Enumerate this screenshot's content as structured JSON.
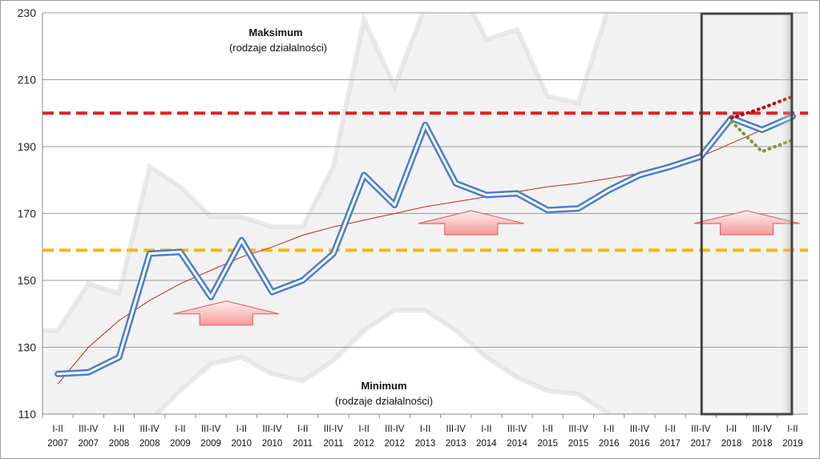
{
  "chart_data": {
    "type": "line",
    "title": "",
    "xlabel": "",
    "ylabel": "",
    "ylim": [
      110,
      230
    ],
    "yticks": [
      110,
      130,
      150,
      170,
      190,
      210,
      230
    ],
    "grid": true,
    "categories": [
      [
        "I-II",
        "2007"
      ],
      [
        "III-IV",
        "2007"
      ],
      [
        "I-II",
        "2008"
      ],
      [
        "III-IV",
        "2008"
      ],
      [
        "I-II",
        "2009"
      ],
      [
        "III-IV",
        "2009"
      ],
      [
        "I-II",
        "2010"
      ],
      [
        "III-IV",
        "2010"
      ],
      [
        "I-II",
        "2011"
      ],
      [
        "III-IV",
        "2011"
      ],
      [
        "I-II",
        "2012"
      ],
      [
        "III-IV",
        "2012"
      ],
      [
        "I-II",
        "2013"
      ],
      [
        "III-IV",
        "2013"
      ],
      [
        "I-II",
        "2014"
      ],
      [
        "III-IV",
        "2014"
      ],
      [
        "I-II",
        "2015"
      ],
      [
        "III-IV",
        "2015"
      ],
      [
        "I-II",
        "2016"
      ],
      [
        "III-IV",
        "2016"
      ],
      [
        "I-II",
        "2017"
      ],
      [
        "III-IV",
        "2017"
      ],
      [
        "I-II",
        "2018"
      ],
      [
        "III-IV",
        "2018"
      ],
      [
        "I-II",
        "2019"
      ]
    ],
    "series": [
      {
        "name": "",
        "color": "#4a7ec8",
        "values": [
          122,
          122.5,
          127,
          158,
          158.5,
          145,
          162,
          146.5,
          150,
          158,
          181.5,
          172.5,
          196.5,
          179,
          175.5,
          176,
          171,
          171.5,
          177,
          181.5,
          184,
          187,
          198.5,
          195,
          199
        ]
      }
    ],
    "upper_band": [
      135,
      149,
      146,
      184,
      178,
      169,
      169,
      166,
      166,
      184,
      228,
      208,
      232,
      240,
      222,
      225,
      205,
      203,
      232,
      232,
      232,
      232,
      232,
      232,
      232
    ],
    "lower_band": [
      96,
      100,
      104,
      108,
      117,
      125,
      127,
      122,
      120,
      126,
      135,
      141,
      141,
      135,
      127,
      121,
      117,
      116,
      110,
      100,
      98,
      96,
      96,
      96,
      96
    ],
    "trend": {
      "type": "log",
      "color": "#cc2020",
      "values": [
        119,
        130,
        138,
        144,
        149,
        153,
        157,
        160,
        163.5,
        166,
        168,
        170,
        172,
        173.5,
        175,
        176.5,
        178,
        179,
        180.5,
        182,
        184,
        187,
        191,
        195,
        200
      ]
    },
    "forecast_high": {
      "color": "#c00000",
      "x": [
        22,
        23,
        24
      ],
      "values": [
        198.5,
        201.5,
        205
      ]
    },
    "forecast_low": {
      "color": "#7a9a30",
      "x": [
        22,
        23,
        24
      ],
      "values": [
        197.5,
        188.5,
        192
      ]
    },
    "reference_lines": [
      {
        "value": 200,
        "color": "#e02020"
      },
      {
        "value": 159,
        "color": "#f5b800"
      }
    ],
    "highlight_range": [
      21.5,
      24.5
    ],
    "arrows": [
      {
        "x_center": 5.5,
        "y": 140
      },
      {
        "x_center": 13.5,
        "y": 167
      },
      {
        "x_center": 22.5,
        "y": 167
      }
    ],
    "annotations": {
      "max_title": "Maksimum",
      "max_sub": "(rodzaje działalności)",
      "min_title": "Minimum",
      "min_sub": "(rodzaje działalności)"
    }
  }
}
